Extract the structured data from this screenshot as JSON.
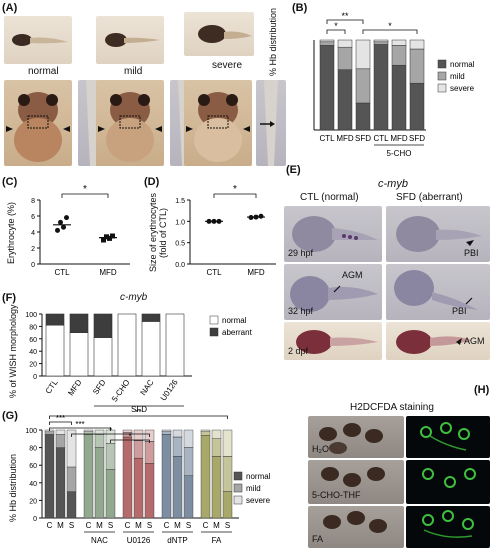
{
  "panels": {
    "A": {
      "label": "(A)",
      "top_labels": [
        "normal",
        "mild",
        "severe"
      ]
    },
    "B": {
      "label": "(B)",
      "ylabel": "% Hb distribution",
      "categories": [
        "CTL",
        "MFD",
        "SFD",
        "CTL",
        "MFD",
        "SFD"
      ],
      "group_label": "5-CHO",
      "legend": [
        "normal",
        "mild",
        "severe"
      ],
      "sig": [
        "*",
        "**",
        "*"
      ]
    },
    "C": {
      "label": "(C)",
      "ylabel": "Erythrocyte (%)",
      "categories": [
        "CTL",
        "MFD"
      ],
      "yticks": [
        "0",
        "2",
        "4",
        "6",
        "8"
      ],
      "sig": "*"
    },
    "D": {
      "label": "(D)",
      "ylabel": "Size of erythrocytes (fold of CTL)",
      "ylabel_line1": "Size of erythrocytes",
      "ylabel_line2": "(fold of CTL)",
      "categories": [
        "CTL",
        "MFD"
      ],
      "yticks": [
        "0.0",
        "0.5",
        "1.0",
        "1.5"
      ],
      "sig": "*"
    },
    "E": {
      "label": "(E)",
      "gene": "c-myb",
      "col_labels": [
        "CTL (normal)",
        "SFD (aberrant)"
      ],
      "row_labels": [
        "29 hpf",
        "32 hpf",
        "2 dpf"
      ],
      "annotations": [
        "PBI",
        "AGM",
        "PBI",
        "AGM"
      ]
    },
    "F": {
      "label": "(F)",
      "gene": "c-myb",
      "ylabel": "% of WISH morphology",
      "categories": [
        "CTL",
        "MFD",
        "SFD",
        "5-CHO",
        "NAC",
        "U0126"
      ],
      "group_label": "SFD",
      "yticks": [
        "0",
        "20",
        "40",
        "60",
        "80",
        "100"
      ],
      "legend": [
        "normal",
        "aberrant"
      ]
    },
    "G": {
      "label": "(G)",
      "ylabel": "% Hb distribution",
      "yticks": [
        "0",
        "20",
        "40",
        "60",
        "80",
        "100"
      ],
      "groups": [
        "",
        "NAC",
        "U0126",
        "dNTP",
        "FA"
      ],
      "sublabels": [
        "C",
        "M",
        "S"
      ],
      "legend": [
        "normal",
        "mild",
        "severe"
      ],
      "sig": [
        "***",
        "**",
        "***",
        "*",
        "*"
      ]
    },
    "H": {
      "label": "(H)",
      "title": "H2DCFDA staining",
      "row_labels": [
        "H₂O",
        "5-CHO-THF",
        "FA"
      ]
    }
  },
  "colors": {
    "normal": "#555555",
    "mild": "#a6a6a6",
    "severe": "#e4e4e4",
    "aberrant": "#3d3d3d",
    "nac": "#92a88f",
    "u0126": "#b56b6b",
    "dntp": "#7d8ea3",
    "fa": "#a8a86a"
  },
  "chart_data": [
    {
      "type": "bar",
      "panel": "B",
      "stacked": true,
      "categories": [
        "CTL",
        "MFD",
        "SFD",
        "5-CHO CTL",
        "5-CHO MFD",
        "5-CHO SFD"
      ],
      "ylim": [
        0,
        100
      ],
      "series": [
        {
          "name": "normal",
          "values": [
            94,
            67,
            30,
            95,
            72,
            52
          ]
        },
        {
          "name": "mild",
          "values": [
            4,
            25,
            38,
            3,
            22,
            38
          ]
        },
        {
          "name": "severe",
          "values": [
            2,
            8,
            32,
            2,
            6,
            10
          ]
        }
      ]
    },
    {
      "type": "scatter",
      "panel": "C",
      "categories": [
        "CTL",
        "MFD"
      ],
      "ylim": [
        0,
        8
      ],
      "points": {
        "CTL": [
          4.2,
          5.2,
          4.6,
          5.8
        ],
        "MFD": [
          3.0,
          3.4,
          3.2,
          3.5
        ]
      },
      "means": [
        4.9,
        3.3
      ]
    },
    {
      "type": "scatter",
      "panel": "D",
      "categories": [
        "CTL",
        "MFD"
      ],
      "ylim": [
        0,
        1.5
      ],
      "points": {
        "CTL": [
          1.0,
          1.0,
          1.0
        ],
        "MFD": [
          1.09,
          1.1,
          1.12
        ]
      },
      "means": [
        1.0,
        1.1
      ]
    },
    {
      "type": "bar",
      "panel": "F",
      "stacked": true,
      "categories": [
        "CTL",
        "MFD",
        "SFD",
        "5-CHO",
        "NAC",
        "U0126"
      ],
      "ylim": [
        0,
        100
      ],
      "series": [
        {
          "name": "normal",
          "values": [
            82,
            70,
            62,
            100,
            88,
            100
          ]
        },
        {
          "name": "aberrant",
          "values": [
            18,
            30,
            38,
            0,
            12,
            0
          ]
        }
      ]
    },
    {
      "type": "bar",
      "panel": "G",
      "stacked": true,
      "categories": [
        "C",
        "M",
        "S",
        "NAC C",
        "NAC M",
        "NAC S",
        "U0126 C",
        "U0126 M",
        "U0126 S",
        "dNTP C",
        "dNTP M",
        "dNTP S",
        "FA C",
        "FA M",
        "FA S"
      ],
      "ylim": [
        0,
        100
      ],
      "series": [
        {
          "name": "normal",
          "values": [
            95,
            80,
            30,
            95,
            80,
            55,
            92,
            68,
            62,
            95,
            70,
            48,
            94,
            70,
            30
          ]
        },
        {
          "name": "mild",
          "values": [
            3,
            15,
            28,
            3,
            15,
            30,
            5,
            20,
            25,
            3,
            22,
            32,
            4,
            20,
            40
          ]
        },
        {
          "name": "severe",
          "values": [
            2,
            5,
            42,
            2,
            5,
            15,
            3,
            12,
            13,
            2,
            8,
            20,
            2,
            10,
            30
          ]
        }
      ]
    }
  ]
}
